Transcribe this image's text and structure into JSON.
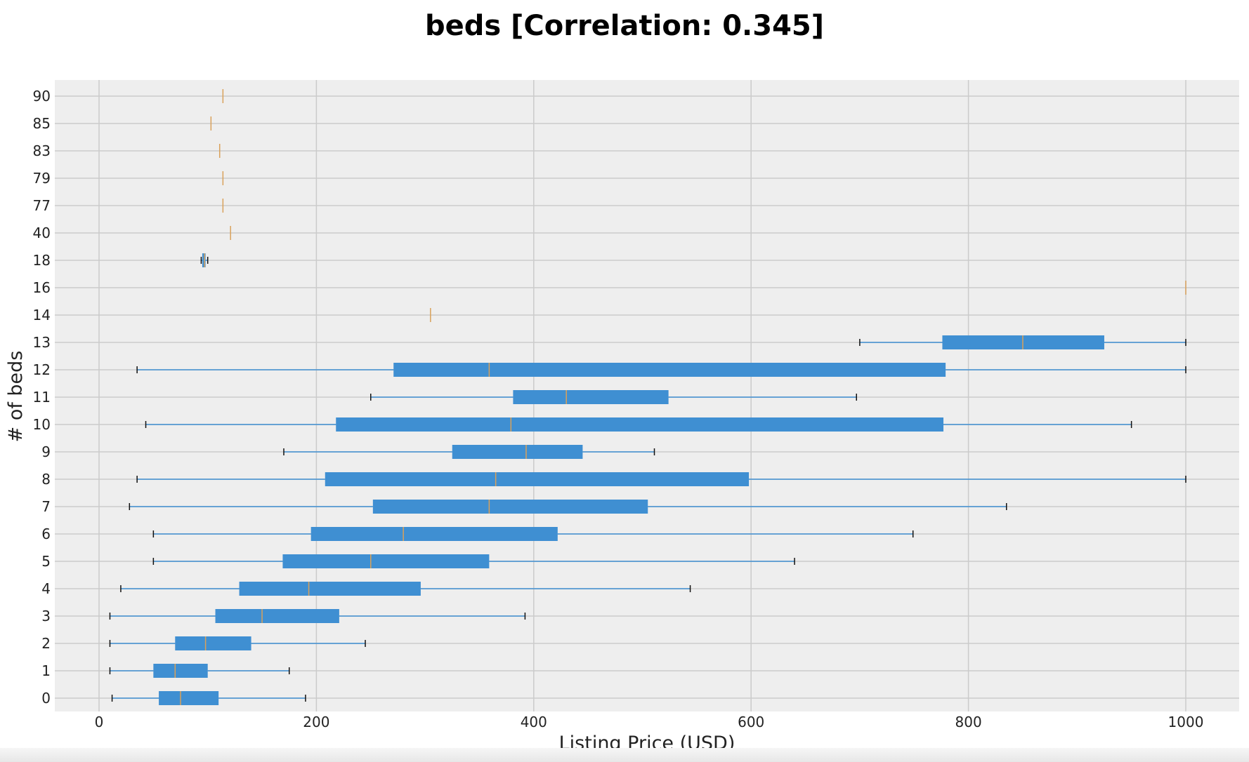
{
  "colors": {
    "plot_bg": "#eeeeee",
    "grid": "#cbcbcb",
    "box": "#3f8fd2",
    "median": "#d9a15a",
    "whisker": "#3f8fd2",
    "cap": "#111111",
    "text": "#222222"
  },
  "chart_data": {
    "type": "boxplot",
    "orientation": "horizontal",
    "title": "beds [Correlation: 0.345]",
    "xlabel": "Listing Price (USD)",
    "ylabel": "# of beds",
    "xlim": [
      -40,
      1050
    ],
    "xticks": [
      0,
      200,
      400,
      600,
      800,
      1000
    ],
    "xtick_labels": [
      "0",
      "200",
      "400",
      "600",
      "800",
      "1000"
    ],
    "grid": true,
    "categories": [
      "0",
      "1",
      "2",
      "3",
      "4",
      "5",
      "6",
      "7",
      "8",
      "9",
      "10",
      "11",
      "12",
      "13",
      "14",
      "16",
      "18",
      "40",
      "77",
      "79",
      "83",
      "85",
      "90"
    ],
    "boxes": [
      {
        "beds": "0",
        "whislo": 12,
        "q1": 55,
        "med": 75,
        "q3": 110,
        "whishi": 190
      },
      {
        "beds": "1",
        "whislo": 10,
        "q1": 50,
        "med": 70,
        "q3": 100,
        "whishi": 175
      },
      {
        "beds": "2",
        "whislo": 10,
        "q1": 70,
        "med": 98,
        "q3": 140,
        "whishi": 245
      },
      {
        "beds": "3",
        "whislo": 10,
        "q1": 107,
        "med": 150,
        "q3": 221,
        "whishi": 392
      },
      {
        "beds": "4",
        "whislo": 20,
        "q1": 129,
        "med": 193,
        "q3": 296,
        "whishi": 544
      },
      {
        "beds": "5",
        "whislo": 50,
        "q1": 169,
        "med": 250,
        "q3": 359,
        "whishi": 640
      },
      {
        "beds": "6",
        "whislo": 50,
        "q1": 195,
        "med": 280,
        "q3": 422,
        "whishi": 749
      },
      {
        "beds": "7",
        "whislo": 28,
        "q1": 252,
        "med": 359,
        "q3": 505,
        "whishi": 835
      },
      {
        "beds": "8",
        "whislo": 35,
        "q1": 208,
        "med": 365,
        "q3": 598,
        "whishi": 1000
      },
      {
        "beds": "9",
        "whislo": 170,
        "q1": 325,
        "med": 393,
        "q3": 445,
        "whishi": 511
      },
      {
        "beds": "10",
        "whislo": 43,
        "q1": 218,
        "med": 379,
        "q3": 777,
        "whishi": 950
      },
      {
        "beds": "11",
        "whislo": 250,
        "q1": 381,
        "med": 430,
        "q3": 524,
        "whishi": 697
      },
      {
        "beds": "12",
        "whislo": 35,
        "q1": 271,
        "med": 359,
        "q3": 779,
        "whishi": 1000
      },
      {
        "beds": "13",
        "whislo": 700,
        "q1": 776,
        "med": 850,
        "q3": 925,
        "whishi": 1000
      },
      {
        "beds": "14",
        "whislo": 305,
        "q1": 305,
        "med": 305,
        "q3": 305,
        "whishi": 305
      },
      {
        "beds": "16",
        "whislo": 1000,
        "q1": 1000,
        "med": 1000,
        "q3": 1000,
        "whishi": 1000
      },
      {
        "beds": "18",
        "whislo": 94,
        "q1": 95,
        "med": 97,
        "q3": 98,
        "whishi": 100
      },
      {
        "beds": "40",
        "whislo": 121,
        "q1": 121,
        "med": 121,
        "q3": 121,
        "whishi": 121
      },
      {
        "beds": "77",
        "whislo": 114,
        "q1": 114,
        "med": 114,
        "q3": 114,
        "whishi": 114
      },
      {
        "beds": "79",
        "whislo": 114,
        "q1": 114,
        "med": 114,
        "q3": 114,
        "whishi": 114
      },
      {
        "beds": "83",
        "whislo": 111,
        "q1": 111,
        "med": 111,
        "q3": 111,
        "whishi": 111
      },
      {
        "beds": "85",
        "whislo": 103,
        "q1": 103,
        "med": 103,
        "q3": 103,
        "whishi": 103
      },
      {
        "beds": "90",
        "whislo": 114,
        "q1": 114,
        "med": 114,
        "q3": 114,
        "whishi": 114
      }
    ]
  }
}
